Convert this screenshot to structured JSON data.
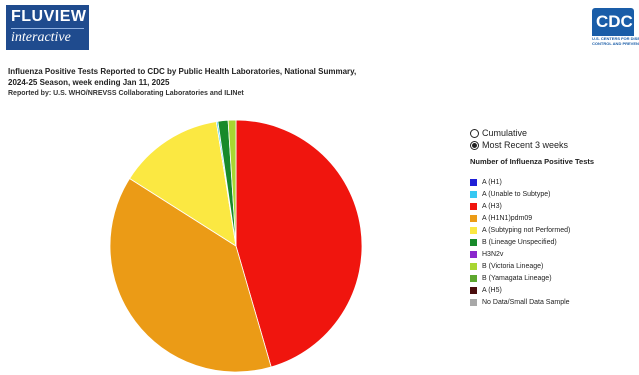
{
  "header": {
    "logo_line1": "FLUVIEW",
    "logo_line2": "interactive",
    "cdc_logo_text": "CDC",
    "cdc_logo_sub1": "U.S. CENTERS FOR DISEASE",
    "cdc_logo_sub2": "CONTROL AND PREVENTION"
  },
  "report": {
    "title_line1": "Influenza Positive Tests Reported to CDC by Public Health Laboratories, National Summary,",
    "title_line2": "2024-25 Season, week ending Jan 11, 2025",
    "reported_by": "Reported by: U.S. WHO/NREVSS Collaborating Laboratories and ILINet"
  },
  "view_options": [
    {
      "label": "Cumulative",
      "selected": false
    },
    {
      "label": "Most Recent 3 weeks",
      "selected": true
    }
  ],
  "legend": {
    "title": "Number of Influenza Positive Tests",
    "items": [
      {
        "label": "A (H1)",
        "color": "#1f1fd6"
      },
      {
        "label": "A (Unable to Subtype)",
        "color": "#36c8f2"
      },
      {
        "label": "A (H3)",
        "color": "#f0150e"
      },
      {
        "label": "A (H1N1)pdm09",
        "color": "#eb9b16"
      },
      {
        "label": "A (Subtyping not Performed)",
        "color": "#fbe842"
      },
      {
        "label": "B (Lineage Unspecified)",
        "color": "#178a2a"
      },
      {
        "label": "H3N2v",
        "color": "#8a27cc"
      },
      {
        "label": "B (Victoria Lineage)",
        "color": "#a8d631"
      },
      {
        "label": "B (Yamagata Lineage)",
        "color": "#5da72e"
      },
      {
        "label": "A (H5)",
        "color": "#4a0d0d"
      },
      {
        "label": "No Data/Small Data Sample",
        "color": "#a8a8a8"
      }
    ]
  },
  "chart_data": {
    "type": "pie",
    "title": "",
    "slices": [
      {
        "label": "A (H3)",
        "value": 45.5,
        "color": "#f0150e"
      },
      {
        "label": "A (H1N1)pdm09",
        "value": 38.5,
        "color": "#eb9b16"
      },
      {
        "label": "A (Subtyping not Performed)",
        "value": 13.5,
        "color": "#fbe842"
      },
      {
        "label": "A (Unable to Subtype)",
        "value": 0.2,
        "color": "#36c8f2"
      },
      {
        "label": "B (Lineage Unspecified)",
        "value": 1.3,
        "color": "#178a2a"
      },
      {
        "label": "B (Victoria Lineage)",
        "value": 1.0,
        "color": "#a8d631"
      }
    ]
  }
}
